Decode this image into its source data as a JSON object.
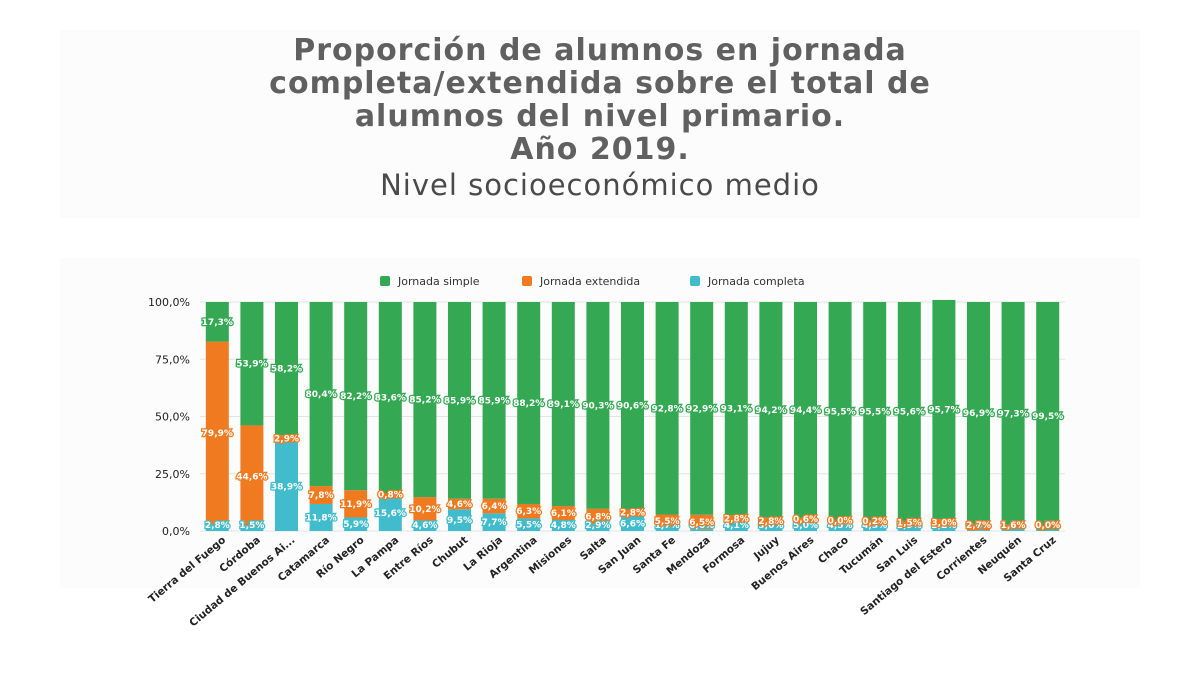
{
  "header": {
    "title_lines": [
      "Proporción de alumnos en jornada",
      "completa/extendida sobre el total de",
      "alumnos del nivel primario.",
      "Año 2019."
    ],
    "subtitle": "Nivel socioeconómico medio"
  },
  "chart_data": {
    "type": "bar",
    "stacked": true,
    "title": "Proporción de alumnos en jornada completa/extendida sobre el total de alumnos del nivel primario. Año 2019.",
    "subtitle": "Nivel socioeconómico medio",
    "xlabel": "",
    "ylabel": "",
    "ylim": [
      0,
      100
    ],
    "y_ticks": [
      "0,0%",
      "25,0%",
      "50,0%",
      "75,0%",
      "100,0%"
    ],
    "grid": true,
    "legend_position": "top",
    "categories": [
      "Tierra del Fuego",
      "Córdoba",
      "Ciudad de Buenos Ai...",
      "Catamarca",
      "Río Negro",
      "La Pampa",
      "Entre Ríos",
      "Chubut",
      "La Rioja",
      "Argentina",
      "Misiones",
      "Salta",
      "San Juan",
      "Santa Fe",
      "Mendoza",
      "Formosa",
      "Jujuy",
      "Buenos Aires",
      "Chaco",
      "Tucumán",
      "San Luis",
      "Santiago del Estero",
      "Corrientes",
      "Neuquén",
      "Santa Cruz"
    ],
    "series": [
      {
        "name": "Jornada completa",
        "color": "#40bccc",
        "values": [
          2.8,
          1.5,
          38.9,
          11.8,
          5.9,
          15.6,
          4.6,
          9.5,
          7.7,
          5.5,
          4.8,
          2.9,
          6.6,
          1.7,
          0.6,
          4.1,
          3.0,
          5.0,
          4.5,
          4.3,
          2.9,
          2.2,
          0.4,
          1.1,
          0.5
        ],
        "labels": [
          "2,8%",
          "1,5%",
          "38,9%",
          "11,8%",
          "5,9%",
          "15,6%",
          "4,6%",
          "9,5%",
          "7,7%",
          "5,5%",
          "4,8%",
          "2,9%",
          "6,6%",
          "1,7%",
          "0,6%",
          "4,1%",
          "3,0%",
          "5,0%",
          "4,5%",
          "4,3%",
          "2,9%",
          "2,2%",
          "0,4%",
          "1,1%",
          "0,5%"
        ]
      },
      {
        "name": "Jornada extendida",
        "color": "#f07a20",
        "values": [
          79.9,
          44.6,
          2.9,
          7.8,
          11.9,
          0.8,
          10.2,
          4.6,
          6.4,
          6.3,
          6.1,
          6.8,
          2.8,
          5.5,
          6.5,
          2.8,
          2.8,
          0.6,
          0.0,
          0.2,
          1.5,
          3.0,
          2.7,
          1.6,
          0.0
        ],
        "labels": [
          "79,9%",
          "44,6%",
          "2,9%",
          "7,8%",
          "11,9%",
          "0,8%",
          "10,2%",
          "4,6%",
          "6,4%",
          "6,3%",
          "6,1%",
          "6,8%",
          "2,8%",
          "5,5%",
          "6,5%",
          "2,8%",
          "2,8%",
          "0,6%",
          "0,0%",
          "0,2%",
          "1,5%",
          "3,0%",
          "2,7%",
          "1,6%",
          "0,0%"
        ]
      },
      {
        "name": "Jornada simple",
        "color": "#35a853",
        "values": [
          17.3,
          53.9,
          58.2,
          80.4,
          82.2,
          83.6,
          85.2,
          85.9,
          85.9,
          88.2,
          89.1,
          90.3,
          90.6,
          92.8,
          92.9,
          93.1,
          94.2,
          94.4,
          95.5,
          95.5,
          95.6,
          95.7,
          96.9,
          97.3,
          99.5
        ],
        "labels": [
          "17,3%",
          "53,9%",
          "58,2%",
          "80,4%",
          "82,2%",
          "83,6%",
          "85,2%",
          "85,9%",
          "85,9%",
          "88,2%",
          "89,1%",
          "90,3%",
          "90,6%",
          "92,8%",
          "92,9%",
          "93,1%",
          "94,2%",
          "94,4%",
          "95,5%",
          "95,5%",
          "95,6%",
          "95,7%",
          "96,9%",
          "97,3%",
          "99,5%"
        ]
      }
    ],
    "legend_order": [
      "Jornada simple",
      "Jornada extendida",
      "Jornada completa"
    ]
  }
}
